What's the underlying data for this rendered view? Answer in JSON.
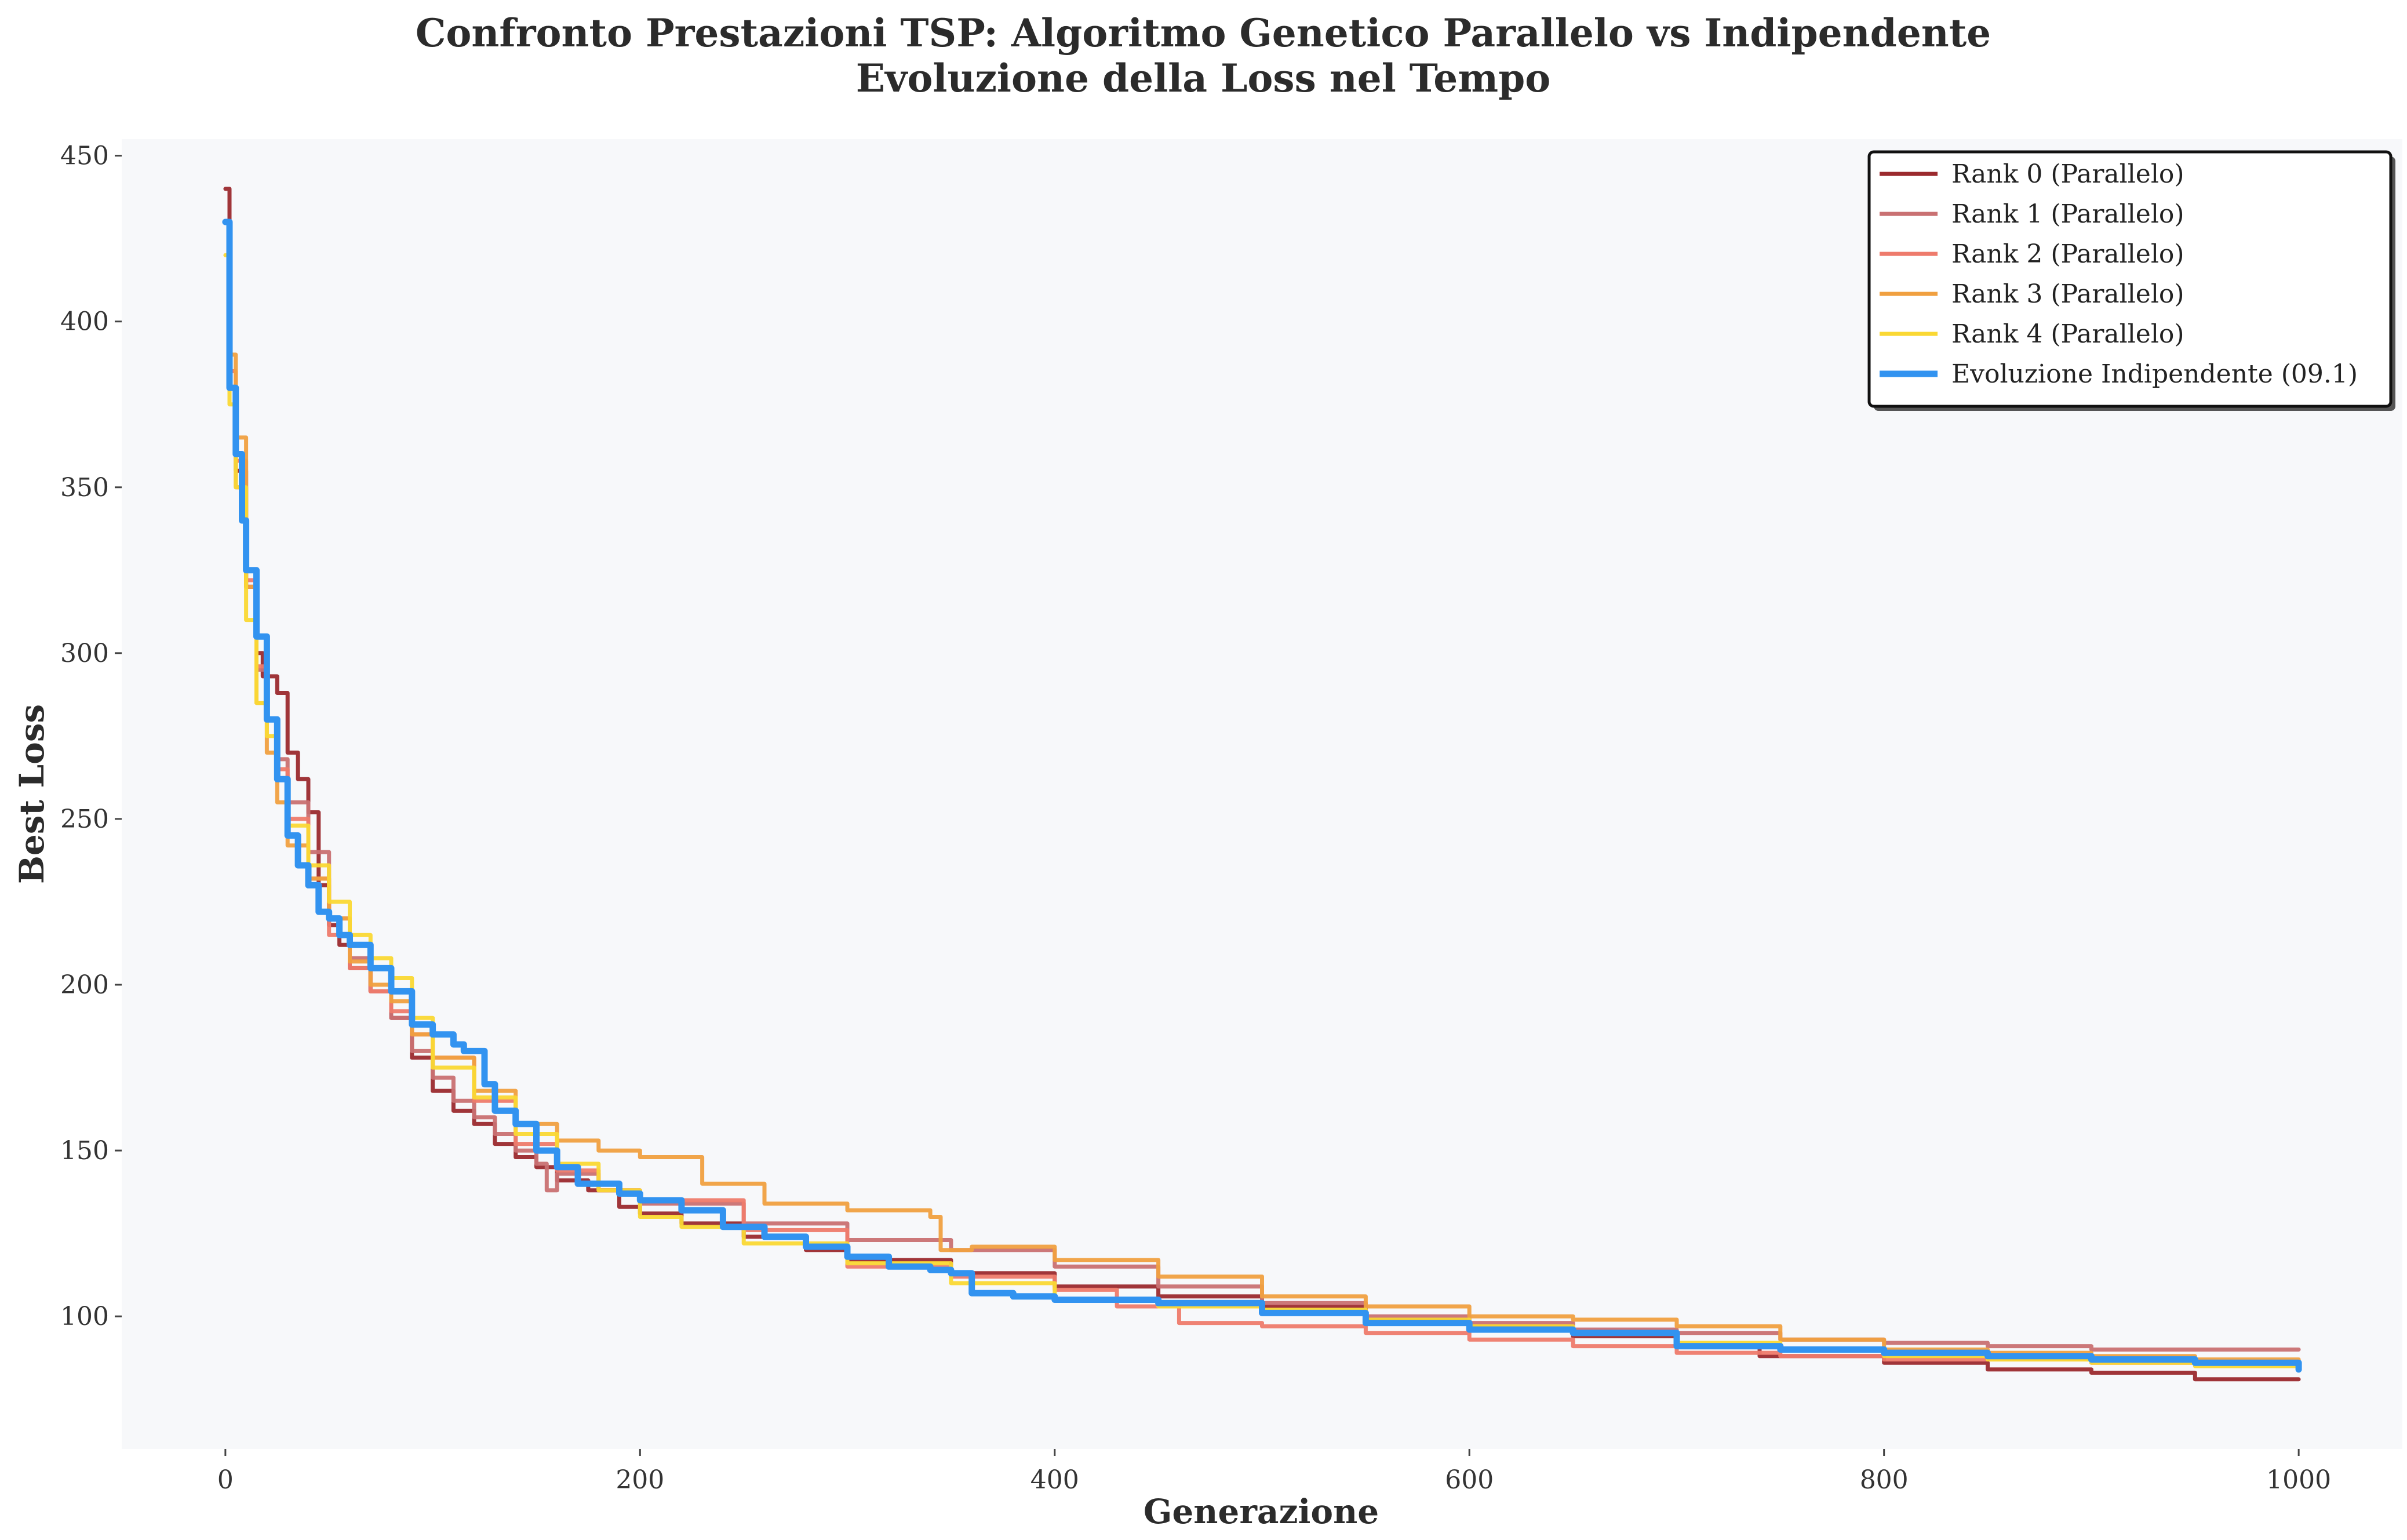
{
  "chart_data": {
    "type": "line",
    "title_line1": "Confronto Prestazioni TSP: Algoritmo Genetico Parallelo vs Indipendente",
    "title_line2": "Evoluzione della Loss nel Tempo",
    "xlabel": "Generazione",
    "ylabel": "Best Loss",
    "xlim": [
      -50,
      1050
    ],
    "ylim": [
      60,
      455
    ],
    "xticks": [
      0,
      200,
      400,
      600,
      800,
      1000
    ],
    "yticks": [
      100,
      150,
      200,
      250,
      300,
      350,
      400,
      450
    ],
    "grid": false,
    "legend_position": "top-right",
    "plot_background": "#f7f8fa",
    "series": [
      {
        "name": "Rank 0 (Parallelo)",
        "color": "#9b2a2e",
        "x": [
          0,
          2,
          5,
          10,
          15,
          18,
          20,
          25,
          30,
          35,
          40,
          45,
          50,
          55,
          60,
          70,
          80,
          90,
          100,
          110,
          120,
          130,
          140,
          150,
          160,
          175,
          190,
          200,
          220,
          250,
          280,
          300,
          350,
          400,
          450,
          500,
          550,
          600,
          650,
          700,
          740,
          800,
          850,
          900,
          950,
          1000
        ],
        "y": [
          440,
          380,
          355,
          320,
          300,
          293,
          293,
          288,
          270,
          262,
          252,
          230,
          218,
          212,
          205,
          198,
          190,
          178,
          168,
          162,
          158,
          152,
          148,
          145,
          141,
          138,
          133,
          131,
          128,
          124,
          120,
          117,
          113,
          109,
          106,
          103,
          99,
          97,
          94,
          91,
          88,
          86,
          84,
          83,
          81,
          81
        ]
      },
      {
        "name": "Rank 1 (Parallelo)",
        "color": "#c97172",
        "x": [
          0,
          2,
          5,
          10,
          15,
          20,
          25,
          30,
          40,
          50,
          60,
          70,
          80,
          90,
          100,
          110,
          120,
          130,
          140,
          150,
          155,
          160,
          180,
          200,
          250,
          300,
          350,
          400,
          450,
          500,
          550,
          600,
          650,
          700,
          750,
          800,
          850,
          900,
          950,
          1000
        ],
        "y": [
          430,
          380,
          350,
          320,
          295,
          280,
          268,
          255,
          240,
          220,
          208,
          198,
          190,
          180,
          172,
          165,
          160,
          155,
          150,
          146,
          138,
          143,
          138,
          134,
          128,
          123,
          120,
          115,
          109,
          104,
          100,
          98,
          96,
          95,
          93,
          92,
          91,
          90,
          90,
          90
        ]
      },
      {
        "name": "Rank 2 (Parallelo)",
        "color": "#ee7b6c",
        "x": [
          0,
          2,
          5,
          10,
          15,
          20,
          25,
          30,
          40,
          50,
          60,
          70,
          80,
          90,
          100,
          120,
          140,
          160,
          180,
          200,
          250,
          300,
          350,
          400,
          430,
          460,
          500,
          550,
          600,
          650,
          700,
          750,
          800,
          850,
          900,
          950,
          1000
        ],
        "y": [
          430,
          385,
          358,
          322,
          296,
          280,
          265,
          250,
          232,
          215,
          205,
          198,
          192,
          185,
          178,
          165,
          152,
          144,
          138,
          135,
          126,
          115,
          112,
          108,
          103,
          98,
          97,
          95,
          93,
          91,
          89,
          88,
          87,
          87,
          86,
          86,
          86
        ]
      },
      {
        "name": "Rank 3 (Parallelo)",
        "color": "#f0a040",
        "x": [
          0,
          2,
          5,
          10,
          15,
          20,
          25,
          30,
          40,
          50,
          60,
          70,
          80,
          90,
          100,
          120,
          140,
          160,
          180,
          200,
          230,
          260,
          300,
          340,
          345,
          360,
          400,
          450,
          500,
          550,
          600,
          650,
          700,
          750,
          800,
          850,
          900,
          950,
          1000
        ],
        "y": [
          430,
          390,
          365,
          320,
          285,
          270,
          255,
          242,
          232,
          220,
          207,
          200,
          195,
          185,
          178,
          168,
          158,
          153,
          150,
          148,
          140,
          134,
          132,
          130,
          120,
          121,
          117,
          112,
          106,
          103,
          100,
          99,
          97,
          93,
          90,
          89,
          88,
          87,
          87
        ]
      },
      {
        "name": "Rank 4 (Parallelo)",
        "color": "#fad834",
        "x": [
          0,
          2,
          5,
          10,
          15,
          20,
          25,
          30,
          40,
          50,
          60,
          70,
          80,
          90,
          100,
          120,
          140,
          160,
          180,
          200,
          220,
          250,
          300,
          350,
          400,
          450,
          500,
          550,
          600,
          650,
          700,
          750,
          800,
          850,
          900,
          950,
          1000
        ],
        "y": [
          420,
          375,
          350,
          310,
          285,
          275,
          262,
          248,
          236,
          225,
          215,
          208,
          202,
          190,
          175,
          166,
          155,
          146,
          138,
          130,
          127,
          122,
          116,
          110,
          105,
          103,
          102,
          99,
          97,
          95,
          92,
          90,
          88,
          87,
          86,
          85,
          85
        ]
      },
      {
        "name": "Evoluzione Indipendente (09.1)",
        "color": "#3293f0",
        "x": [
          0,
          2,
          5,
          8,
          10,
          15,
          20,
          25,
          30,
          35,
          40,
          45,
          50,
          55,
          60,
          70,
          80,
          90,
          100,
          110,
          115,
          120,
          125,
          130,
          140,
          150,
          160,
          170,
          180,
          190,
          200,
          220,
          240,
          260,
          280,
          300,
          320,
          340,
          350,
          360,
          380,
          400,
          450,
          500,
          550,
          600,
          650,
          700,
          750,
          800,
          850,
          900,
          950,
          1000
        ],
        "y": [
          430,
          380,
          360,
          340,
          325,
          305,
          280,
          262,
          245,
          236,
          230,
          222,
          220,
          215,
          212,
          205,
          198,
          188,
          185,
          182,
          180,
          180,
          170,
          162,
          158,
          150,
          145,
          140,
          140,
          137,
          135,
          132,
          127,
          124,
          121,
          118,
          115,
          114,
          113,
          107,
          106,
          105,
          104,
          101,
          98,
          96,
          95,
          91,
          90,
          89,
          88,
          87,
          86,
          84
        ]
      }
    ]
  }
}
